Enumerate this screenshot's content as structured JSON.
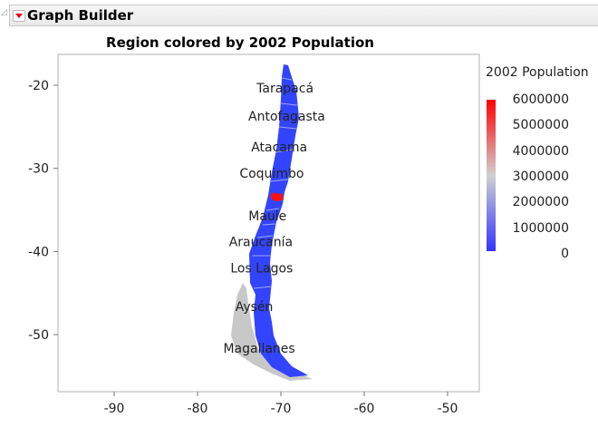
{
  "header": {
    "title": "Graph Builder"
  },
  "chart_data": {
    "type": "map",
    "title": "Region colored by 2002 Population",
    "xlim": [
      -96.7,
      -46.2
    ],
    "ylim": [
      -56.9,
      -16.3
    ],
    "x_ticks": [
      -90,
      -80,
      -70,
      -60,
      -50
    ],
    "y_ticks": [
      -20,
      -30,
      -40,
      -50
    ],
    "regions": [
      {
        "name": "Tarapacá",
        "lon": -69.5,
        "lat": -20.3
      },
      {
        "name": "Antofagasta",
        "lon": -69.3,
        "lat": -23.7
      },
      {
        "name": "Atacama",
        "lon": -70.2,
        "lat": -27.4
      },
      {
        "name": "Coquimbo",
        "lon": -71.1,
        "lat": -30.6
      },
      {
        "name": "Maule",
        "lon": -71.6,
        "lat": -35.7
      },
      {
        "name": "Araucanía",
        "lon": -72.4,
        "lat": -38.8
      },
      {
        "name": "Los Lagos",
        "lon": -72.3,
        "lat": -42.0
      },
      {
        "name": "Aysén",
        "lon": -73.2,
        "lat": -46.6
      },
      {
        "name": "Magallanes",
        "lon": -72.6,
        "lat": -51.6
      }
    ],
    "legend": {
      "title": "2002 Population",
      "labels": [
        "6000000",
        "5000000",
        "4000000",
        "3000000",
        "2000000",
        "1000000",
        "0"
      ],
      "colors": {
        "high": "#ff0000",
        "mid": "#d0d0d0",
        "low": "#3333ff"
      },
      "placement": "right"
    }
  }
}
